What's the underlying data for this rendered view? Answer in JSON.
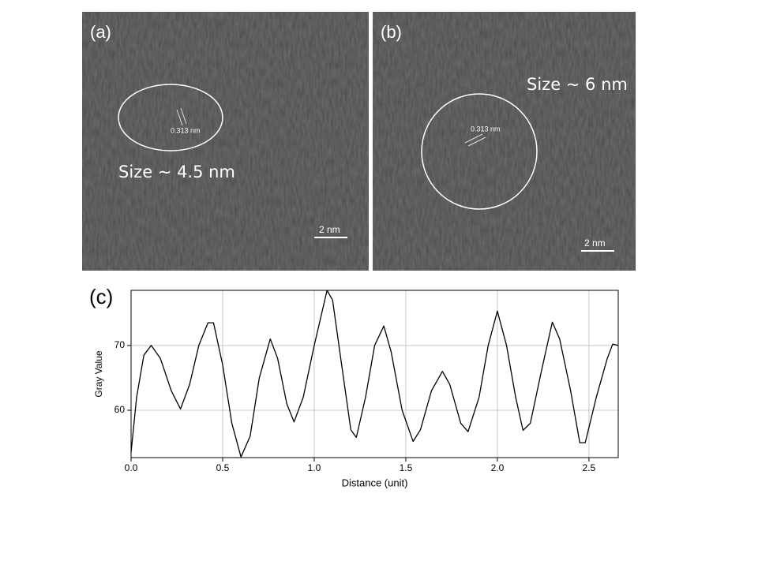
{
  "panels": [
    {
      "label": "(a)",
      "size": "Size ~ 4.5 nm",
      "spacing": "0.313 nm",
      "scale": "2 nm"
    },
    {
      "label": "(b)",
      "size": "Size ~ 6 nm",
      "spacing": "0.313 nm",
      "scale": "2 nm"
    }
  ],
  "chart_data": {
    "type": "line",
    "panel_label": "(c)",
    "xlabel": "Distance (unit)",
    "ylabel": "Gray Value",
    "xlim": [
      0,
      2.66
    ],
    "ylim": [
      52.7,
      78.5
    ],
    "xticks": [
      {
        "value": 0,
        "label": "0.0"
      },
      0.5,
      {
        "value": 1,
        "label": "1.0"
      },
      1.5,
      {
        "value": 2,
        "label": "2.0"
      },
      2.5
    ],
    "yticks": [
      60,
      70
    ],
    "grid": true,
    "color": "#000000",
    "series": [
      {
        "name": "Gray Value",
        "color": "#000000",
        "x": [
          0.0,
          0.03,
          0.07,
          0.11,
          0.16,
          0.22,
          0.27,
          0.32,
          0.37,
          0.42,
          0.45,
          0.5,
          0.55,
          0.6,
          0.65,
          0.7,
          0.76,
          0.8,
          0.85,
          0.89,
          0.94,
          1.0,
          1.07,
          1.1,
          1.15,
          1.2,
          1.23,
          1.28,
          1.33,
          1.38,
          1.42,
          1.48,
          1.54,
          1.58,
          1.64,
          1.7,
          1.74,
          1.8,
          1.84,
          1.9,
          1.95,
          2.0,
          2.05,
          2.1,
          2.14,
          2.18,
          2.24,
          2.3,
          2.34,
          2.4,
          2.45,
          2.48,
          2.54,
          2.6,
          2.63,
          2.66
        ],
        "values": [
          53.5,
          62,
          68.5,
          70,
          68,
          63,
          60.2,
          64,
          70,
          73.5,
          73.5,
          67,
          58,
          52.8,
          56,
          65,
          71,
          68,
          61,
          58.2,
          62,
          70,
          78.5,
          77,
          67,
          57,
          55.8,
          62,
          70,
          73,
          69,
          60,
          55.2,
          57,
          63,
          66,
          64,
          58,
          56.7,
          62,
          70,
          75.3,
          70,
          62,
          56.9,
          58,
          66,
          73.6,
          71,
          63,
          55,
          55,
          62,
          68,
          70.2,
          70
        ]
      }
    ]
  }
}
